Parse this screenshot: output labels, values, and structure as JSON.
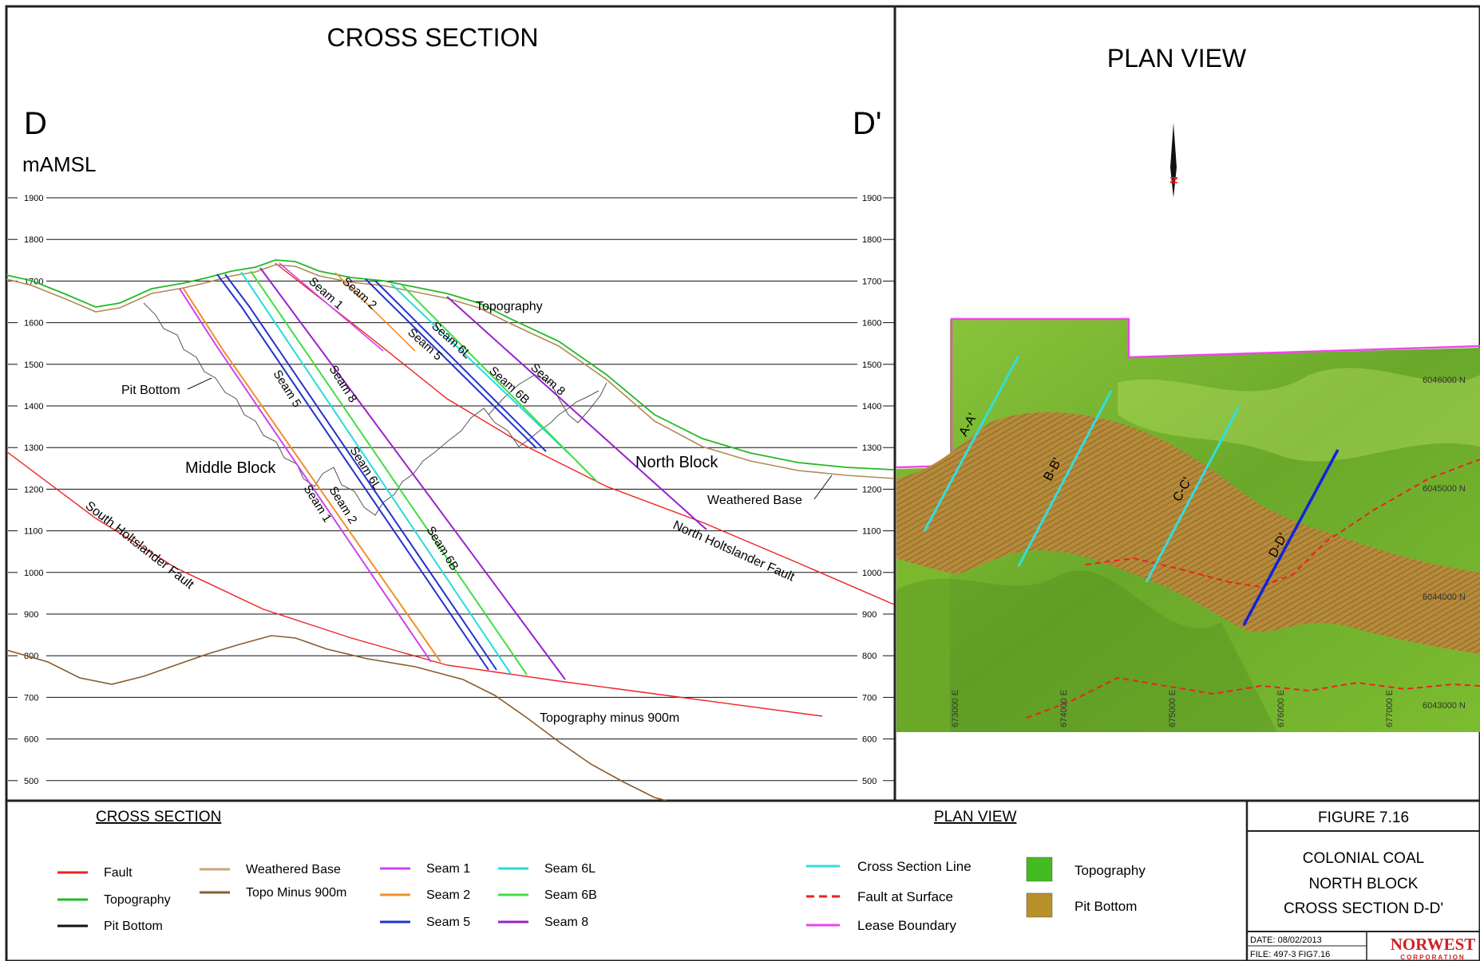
{
  "cross_section": {
    "title": "CROSS SECTION",
    "left_label": "D",
    "right_label": "D'",
    "unit_label": "mAMSL",
    "elevations": [
      1900,
      1800,
      1700,
      1600,
      1500,
      1400,
      1300,
      1200,
      1100,
      1000,
      900,
      800,
      700,
      600,
      500
    ],
    "labels": {
      "topography": "Topography",
      "pit_bottom": "Pit Bottom",
      "middle_block": "Middle Block",
      "north_block": "North Block",
      "weathered_base": "Weathered Base",
      "south_fault": "South Holtslander Fault",
      "north_fault": "North Holtslander Fault",
      "topo_minus": "Topography minus 900m",
      "seam_1": "Seam 1",
      "seam_2": "Seam 2",
      "seam_5": "Seam 5",
      "seam_6l": "Seam 6L",
      "seam_6b": "Seam 6B",
      "seam_8": "Seam 8"
    }
  },
  "plan_view": {
    "title": "PLAN VIEW",
    "north_letter": "N",
    "section_labels": [
      "A-A'",
      "B-B'",
      "C-C'",
      "D-D'"
    ],
    "northings": [
      "6046000 N",
      "6045000 N",
      "6044000 N",
      "6043000 N"
    ],
    "eastings": [
      "673000 E",
      "674000 E",
      "675000 E",
      "676000 E",
      "677000 E"
    ]
  },
  "legend": {
    "cross_heading": "CROSS SECTION",
    "plan_heading": "PLAN VIEW",
    "cross_items": [
      {
        "label": "Fault",
        "color": "#ee2222"
      },
      {
        "label": "Topography",
        "color": "#22bb22"
      },
      {
        "label": "Pit Bottom",
        "color": "#111111"
      },
      {
        "label": "Weathered Base",
        "color": "#c8a878"
      },
      {
        "label": "Topo Minus 900m",
        "color": "#8b5a2b"
      },
      {
        "label": "Seam 1",
        "color": "#cc44ee"
      },
      {
        "label": "Seam 2",
        "color": "#f0902a"
      },
      {
        "label": "Seam 5",
        "color": "#2233cc"
      },
      {
        "label": "Seam 6L",
        "color": "#22dddd"
      },
      {
        "label": "Seam 6B",
        "color": "#44dd44"
      },
      {
        "label": "Seam 8",
        "color": "#9922cc"
      }
    ],
    "plan_items": [
      {
        "label": "Cross Section Line",
        "color": "#33dddd"
      },
      {
        "label": "Fault at Surface",
        "color": "#ee2222"
      },
      {
        "label": "Lease Boundary",
        "color": "#ee44ee"
      },
      {
        "label": "Topography",
        "color": "#44bb22"
      },
      {
        "label": "Pit Bottom",
        "color": "#b8902a"
      }
    ]
  },
  "title_block": {
    "figure": "FIGURE 7.16",
    "line1": "COLONIAL COAL",
    "line2": "NORTH BLOCK",
    "line3": "CROSS SECTION D-D'",
    "date": "DATE: 08/02/2013",
    "file": "FILE: 497-3 FIG7.16",
    "company": "NORWEST",
    "company_sub": "CORPORATION"
  }
}
